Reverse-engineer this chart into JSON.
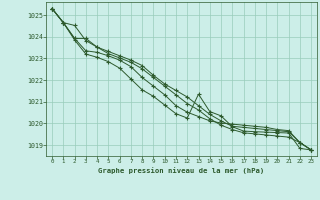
{
  "background_color": "#cceee8",
  "plot_bg_color": "#cceee8",
  "grid_color": "#99ccbb",
  "line_color": "#2d5a2d",
  "marker_color": "#2d5a2d",
  "title": "Graphe pression niveau de la mer (hPa)",
  "xlim": [
    -0.5,
    23.5
  ],
  "ylim": [
    1018.5,
    1025.6
  ],
  "yticks": [
    1019,
    1020,
    1021,
    1022,
    1023,
    1024,
    1025
  ],
  "xticks": [
    0,
    1,
    2,
    3,
    4,
    5,
    6,
    7,
    8,
    9,
    10,
    11,
    12,
    13,
    14,
    15,
    16,
    17,
    18,
    19,
    20,
    21,
    22,
    23
  ],
  "series": [
    [
      1025.3,
      1024.65,
      1023.85,
      1023.2,
      1023.05,
      1022.85,
      1022.55,
      1022.05,
      1021.55,
      1021.25,
      1020.85,
      1020.45,
      1020.25,
      1021.35,
      1020.55,
      1020.35,
      1019.85,
      1019.65,
      1019.62,
      1019.6,
      1019.58,
      1019.56,
      1018.85,
      1018.78
    ],
    [
      1025.3,
      1024.65,
      1023.92,
      1023.35,
      1023.28,
      1023.12,
      1022.92,
      1022.62,
      1022.12,
      1021.72,
      1021.32,
      1020.82,
      1020.52,
      1020.32,
      1020.12,
      1020.02,
      1019.97,
      1019.92,
      1019.87,
      1019.82,
      1019.72,
      1019.67,
      1019.12,
      1018.78
    ],
    [
      1025.3,
      1024.65,
      1023.92,
      1023.92,
      1023.52,
      1023.32,
      1023.12,
      1022.92,
      1022.67,
      1022.22,
      1021.82,
      1021.52,
      1021.22,
      1020.82,
      1020.42,
      1020.12,
      1019.87,
      1019.82,
      1019.77,
      1019.72,
      1019.67,
      1019.62,
      1019.12,
      1018.78
    ],
    [
      1025.3,
      1024.65,
      1024.52,
      1023.82,
      1023.52,
      1023.22,
      1023.02,
      1022.82,
      1022.52,
      1022.12,
      1021.72,
      1021.32,
      1020.92,
      1020.62,
      1020.22,
      1019.92,
      1019.72,
      1019.57,
      1019.52,
      1019.47,
      1019.42,
      1019.37,
      1019.12,
      1018.78
    ]
  ]
}
